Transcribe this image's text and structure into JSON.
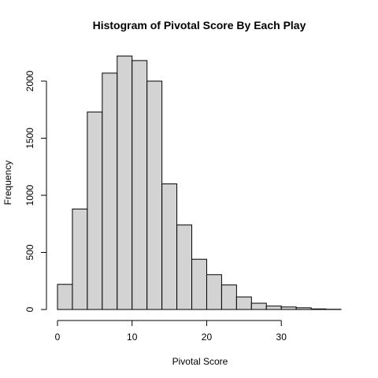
{
  "chart_data": {
    "type": "bar",
    "title": "Histogram of Pivotal Score By Each Play",
    "xlabel": "Pivotal Score",
    "ylabel": "Frequency",
    "xlim": [
      0,
      38
    ],
    "ylim": [
      0,
      2250
    ],
    "x_ticks": [
      0,
      10,
      20,
      30
    ],
    "y_ticks": [
      0,
      500,
      1000,
      1500,
      2000
    ],
    "x_tick_labels": [
      "0",
      "10",
      "20",
      "30"
    ],
    "y_tick_labels": [
      "0",
      "500",
      "1000",
      "1500",
      "2000"
    ],
    "bin_edges": [
      0,
      2,
      4,
      6,
      8,
      10,
      12,
      14,
      16,
      18,
      20,
      22,
      24,
      26,
      28,
      30,
      32,
      34,
      36,
      38
    ],
    "values": [
      220,
      880,
      1730,
      2070,
      2220,
      2180,
      2000,
      1100,
      740,
      440,
      305,
      215,
      110,
      55,
      30,
      22,
      15,
      5,
      2
    ],
    "bar_color": "#d3d3d3",
    "grid": false
  }
}
